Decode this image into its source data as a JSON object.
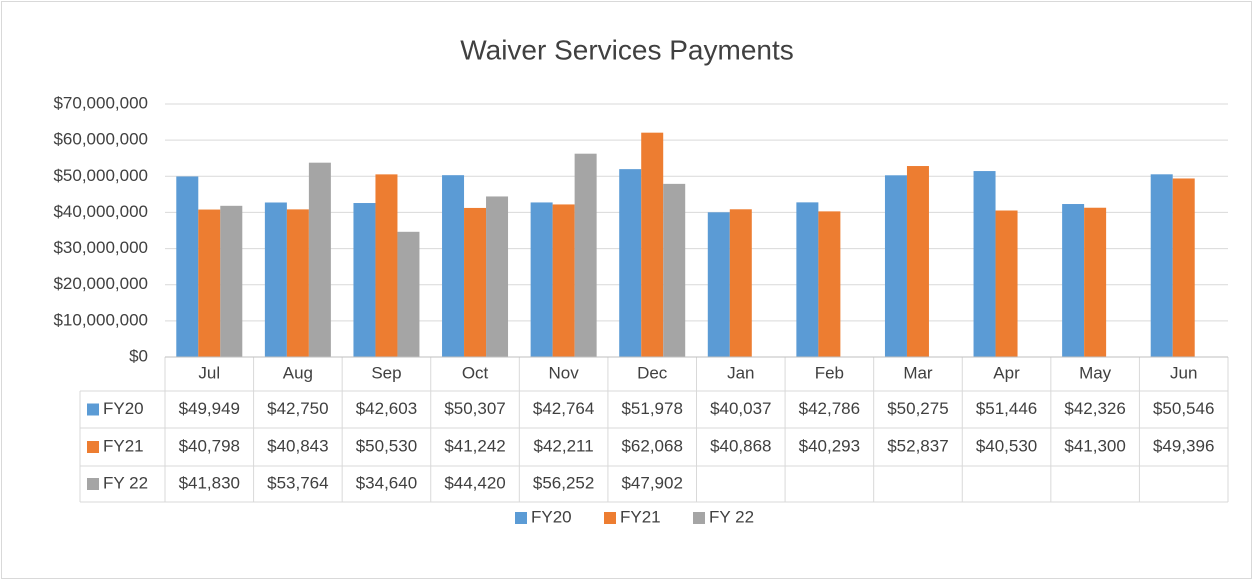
{
  "chart_data": {
    "type": "bar",
    "title": "Waiver Services Payments",
    "categories": [
      "Jul",
      "Aug",
      "Sep",
      "Oct",
      "Nov",
      "Dec",
      "Jan",
      "Feb",
      "Mar",
      "Apr",
      "May",
      "Jun"
    ],
    "series": [
      {
        "name": "FY20",
        "color": "#5b9bd5",
        "values": [
          49949000,
          42750000,
          42603000,
          50307000,
          42764000,
          51978000,
          40037000,
          42786000,
          50275000,
          51446000,
          42326000,
          50546000
        ],
        "value_labels": [
          "$49,949",
          "$42,750",
          "$42,603",
          "$50,307",
          "$42,764",
          "$51,978",
          "$40,037",
          "$42,786",
          "$50,275",
          "$51,446",
          "$42,326",
          "$50,546"
        ]
      },
      {
        "name": "FY21",
        "color": "#ed7d31",
        "values": [
          40798000,
          40843000,
          50530000,
          41242000,
          42211000,
          62068000,
          40868000,
          40293000,
          52837000,
          40530000,
          41300000,
          49396000
        ],
        "value_labels": [
          "$40,798",
          "$40,843",
          "$50,530",
          "$41,242",
          "$42,211",
          "$62,068",
          "$40,868",
          "$40,293",
          "$52,837",
          "$40,530",
          "$41,300",
          "$49,396"
        ]
      },
      {
        "name": "FY 22",
        "color": "#a5a5a5",
        "values": [
          41830000,
          53764000,
          34640000,
          44420000,
          56252000,
          47902000,
          null,
          null,
          null,
          null,
          null,
          null
        ],
        "value_labels": [
          "$41,830",
          "$53,764",
          "$34,640",
          "$44,420",
          "$56,252",
          "$47,902",
          null,
          null,
          null,
          null,
          null,
          null
        ]
      }
    ],
    "ylim": [
      0,
      70000000
    ],
    "yticks": [
      {
        "value": 0,
        "label": "$0"
      },
      {
        "value": 10000000,
        "label": "$10,000,000"
      },
      {
        "value": 20000000,
        "label": "$20,000,000"
      },
      {
        "value": 30000000,
        "label": "$30,000,000"
      },
      {
        "value": 40000000,
        "label": "$40,000,000"
      },
      {
        "value": 50000000,
        "label": "$50,000,000"
      },
      {
        "value": 60000000,
        "label": "$60,000,000"
      },
      {
        "value": 70000000,
        "label": "$70,000,000"
      }
    ],
    "grid": true,
    "legend": "bottom"
  }
}
